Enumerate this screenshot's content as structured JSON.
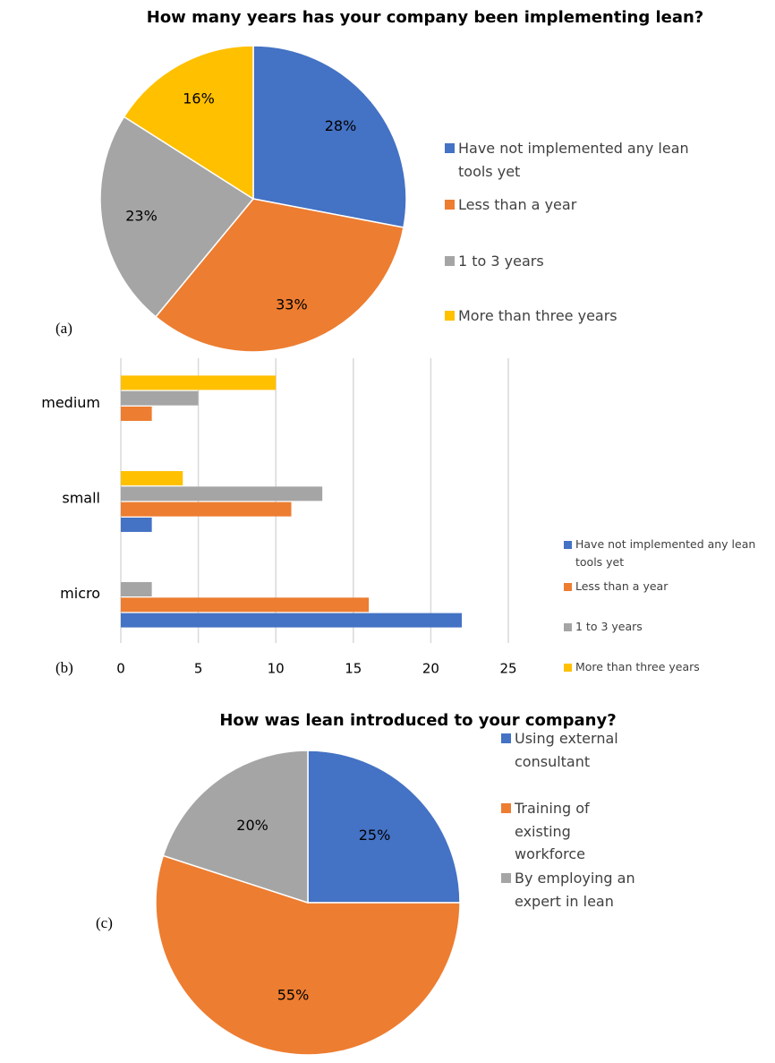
{
  "chart_data": [
    {
      "type": "pie",
      "panel_label": "(a)",
      "title": "How many years has your company been implementing lean?",
      "categories": [
        "Have not implemented any lean tools yet",
        "Less than a year",
        "1 to 3 years",
        "More than three years"
      ],
      "values": [
        28,
        33,
        23,
        16
      ],
      "value_labels": [
        "28%",
        "33%",
        "23%",
        "16%"
      ],
      "colors": [
        "#4472c4",
        "#ed7d31",
        "#a5a5a5",
        "#ffc000"
      ],
      "legend": "right"
    },
    {
      "type": "barh",
      "panel_label": "(b)",
      "categories": [
        "micro",
        "small",
        "medium"
      ],
      "series": [
        {
          "name": "Have not implemented any lean tools yet",
          "color": "#4472c4",
          "values": [
            22,
            2,
            0
          ]
        },
        {
          "name": "Less than a year",
          "color": "#ed7d31",
          "values": [
            16,
            11,
            2
          ]
        },
        {
          "name": "1 to 3 years",
          "color": "#a5a5a5",
          "values": [
            2,
            13,
            5
          ]
        },
        {
          "name": "More than three years",
          "color": "#ffc000",
          "values": [
            0,
            4,
            10
          ]
        }
      ],
      "xlim": [
        0,
        25
      ],
      "xticks": [
        0,
        5,
        10,
        15,
        20,
        25
      ],
      "grid": true,
      "legend": "right"
    },
    {
      "type": "pie",
      "panel_label": "(c)",
      "title": "How was lean introduced to your company?",
      "categories": [
        "Using external consultant",
        "Training of existing workforce",
        "By employing an expert in lean"
      ],
      "values": [
        25,
        55,
        20
      ],
      "value_labels": [
        "25%",
        "55%",
        "20%"
      ],
      "colors": [
        "#4472c4",
        "#ed7d31",
        "#a5a5a5"
      ],
      "legend": "right"
    }
  ]
}
